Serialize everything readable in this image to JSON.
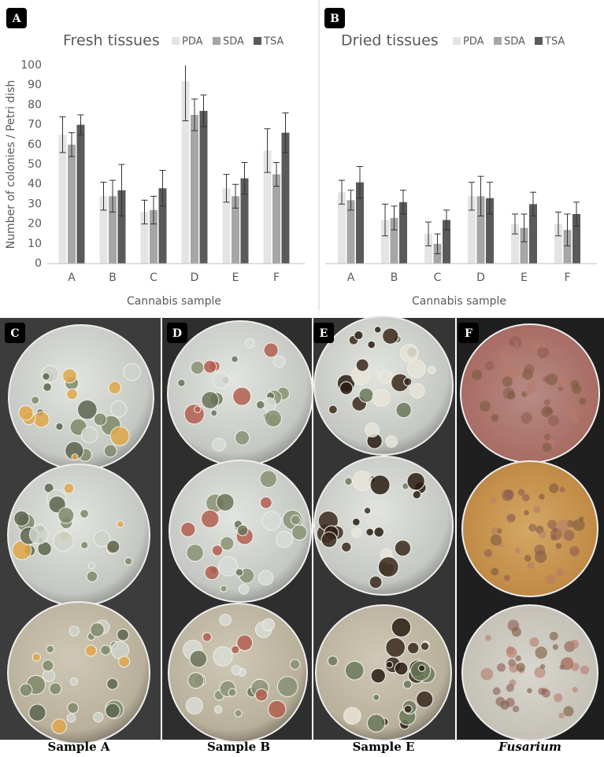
{
  "chart_data": [
    {
      "type": "bar",
      "title": "Fresh tissues",
      "ylabel": "Number of colonies / Petri dish",
      "xlabel": "Cannabis sample",
      "categories": [
        "A",
        "B",
        "C",
        "D",
        "E",
        "F"
      ],
      "series": [
        {
          "name": "PDA",
          "color": "#e4e4e4",
          "values": [
            65,
            34,
            26,
            92,
            38,
            57
          ],
          "errors": [
            9,
            7,
            6,
            20,
            7,
            11
          ]
        },
        {
          "name": "SDA",
          "color": "#a6a6a6",
          "values": [
            60,
            34,
            27,
            75,
            34,
            45
          ],
          "errors": [
            6,
            8,
            7,
            8,
            6,
            6
          ]
        },
        {
          "name": "TSA",
          "color": "#5a5a5a",
          "values": [
            70,
            37,
            38,
            77,
            43,
            66
          ],
          "errors": [
            5,
            13,
            9,
            8,
            8,
            10
          ]
        }
      ],
      "ylim": [
        0,
        100
      ],
      "yticks": [
        0,
        10,
        20,
        30,
        40,
        50,
        60,
        70,
        80,
        90,
        100
      ]
    },
    {
      "type": "bar",
      "title": "Dried tissues",
      "xlabel": "Cannabis sample",
      "categories": [
        "A",
        "B",
        "C",
        "D",
        "E",
        "F"
      ],
      "series": [
        {
          "name": "PDA",
          "color": "#e4e4e4",
          "values": [
            36,
            22,
            15,
            34,
            20,
            20
          ],
          "errors": [
            6,
            8,
            6,
            7,
            5,
            6
          ]
        },
        {
          "name": "SDA",
          "color": "#a6a6a6",
          "values": [
            32,
            23,
            10,
            34,
            18,
            17
          ],
          "errors": [
            5,
            6,
            5,
            10,
            7,
            8
          ]
        },
        {
          "name": "TSA",
          "color": "#5a5a5a",
          "values": [
            41,
            31,
            22,
            33,
            30,
            25
          ],
          "errors": [
            8,
            6,
            5,
            8,
            6,
            6
          ]
        }
      ],
      "ylim": [
        0,
        100
      ]
    }
  ],
  "panel_labels": [
    "A",
    "B",
    "C",
    "D",
    "E",
    "F"
  ],
  "captions": [
    "Sample A",
    "Sample B",
    "Sample E",
    "Fusarium"
  ]
}
